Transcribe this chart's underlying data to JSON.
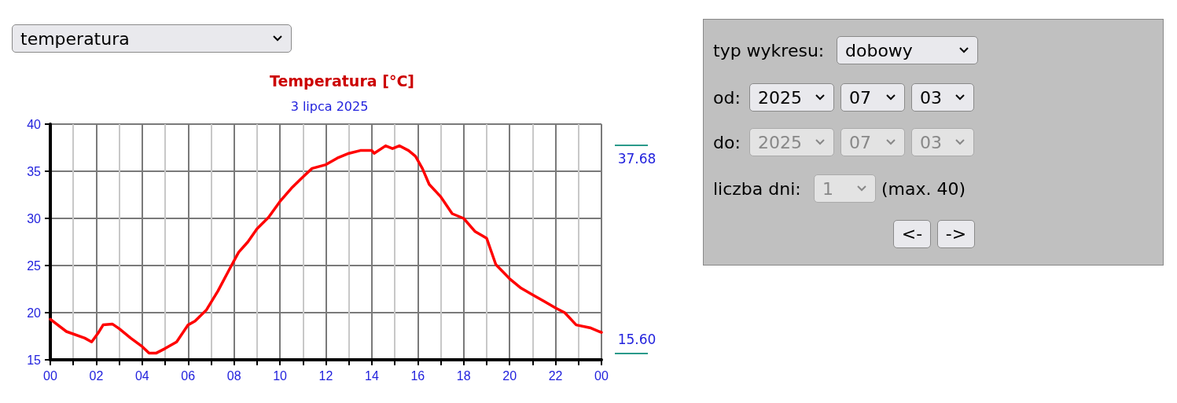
{
  "chart_data": [
    {
      "type": "line",
      "title": "Temperatura [°C]",
      "subtitle": "3 lipca 2025",
      "series": [
        {
          "color": "#ff0000",
          "x": [
            0,
            0.7,
            1.5,
            1.8,
            2.1,
            2.3,
            2.7,
            3.0,
            3.5,
            4.0,
            4.3,
            4.6,
            5.0,
            5.5,
            6.0,
            6.3,
            6.8,
            7.3,
            7.8,
            8.2,
            8.6,
            9.0,
            9.5,
            10.0,
            10.5,
            11.0,
            11.4,
            12.0,
            12.5,
            13.0,
            13.5,
            14.0,
            14.1,
            14.6,
            14.9,
            15.2,
            15.6,
            15.9,
            16.2,
            16.5,
            17.0,
            17.5,
            18.0,
            18.5,
            19.0,
            19.4,
            20.0,
            20.5,
            21.0,
            21.5,
            22.0,
            22.4,
            22.9,
            23.5,
            24.0
          ],
          "values": [
            19.3,
            18.0,
            17.3,
            16.9,
            17.9,
            18.7,
            18.8,
            18.3,
            17.3,
            16.4,
            15.7,
            15.7,
            16.2,
            16.9,
            18.7,
            19.1,
            20.3,
            22.3,
            24.6,
            26.4,
            27.5,
            28.9,
            30.1,
            31.8,
            33.2,
            34.4,
            35.3,
            35.7,
            36.4,
            36.9,
            37.2,
            37.2,
            36.9,
            37.7,
            37.4,
            37.7,
            37.2,
            36.6,
            35.3,
            33.6,
            32.3,
            30.5,
            30.0,
            28.6,
            27.9,
            25.1,
            23.6,
            22.6,
            21.9,
            21.2,
            20.5,
            20.0,
            18.7,
            18.4,
            17.9
          ]
        }
      ],
      "xlim": [
        0,
        24
      ],
      "xticks": [
        {
          "value": 0,
          "label": "00"
        },
        {
          "value": 1,
          "label": null
        },
        {
          "value": 2,
          "label": "02"
        },
        {
          "value": 3,
          "label": null
        },
        {
          "value": 4,
          "label": "04"
        },
        {
          "value": 5,
          "label": null
        },
        {
          "value": 6,
          "label": "06"
        },
        {
          "value": 7,
          "label": null
        },
        {
          "value": 8,
          "label": "08"
        },
        {
          "value": 9,
          "label": null
        },
        {
          "value": 10,
          "label": "10"
        },
        {
          "value": 11,
          "label": null
        },
        {
          "value": 12,
          "label": "12"
        },
        {
          "value": 13,
          "label": null
        },
        {
          "value": 14,
          "label": "14"
        },
        {
          "value": 15,
          "label": null
        },
        {
          "value": 16,
          "label": "16"
        },
        {
          "value": 17,
          "label": null
        },
        {
          "value": 18,
          "label": "18"
        },
        {
          "value": 19,
          "label": null
        },
        {
          "value": 20,
          "label": "20"
        },
        {
          "value": 21,
          "label": null
        },
        {
          "value": 22,
          "label": "22"
        },
        {
          "value": 23,
          "label": null
        },
        {
          "value": 24,
          "label": "00"
        }
      ],
      "ylim": [
        15,
        40
      ],
      "yticks": [
        15,
        20,
        25,
        30,
        35,
        40
      ],
      "grid": true,
      "marker": "none",
      "line_style": "solid",
      "annotations": [
        "37.68",
        "15.60"
      ]
    },
    {
      "type": "other",
      "annotations": [
        "temperatura",
        "typ wykresu:",
        "dobowy",
        "od:",
        "2025",
        "07",
        "03",
        "do:",
        "2025",
        "07",
        "03",
        "liczba dni:",
        "1",
        "(max. 40)",
        "<-",
        "->"
      ]
    }
  ]
}
